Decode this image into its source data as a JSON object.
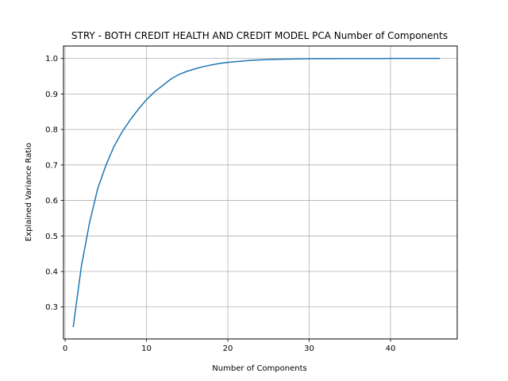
{
  "chart_data": {
    "type": "line",
    "title": "STRY - BOTH CREDIT HEALTH AND CREDIT MODEL PCA Number of Components",
    "xlabel": "Number of Components",
    "ylabel": "Explained Variance Ratio",
    "xlim": [
      -0.2,
      48.2
    ],
    "ylim": [
      0.21,
      1.035
    ],
    "xticks": [
      0,
      10,
      20,
      30,
      40
    ],
    "yticks": [
      0.3,
      0.4,
      0.5,
      0.6,
      0.7,
      0.8,
      0.9,
      1.0
    ],
    "xtick_labels": [
      "0",
      "10",
      "20",
      "30",
      "40"
    ],
    "ytick_labels": [
      "0.3",
      "0.4",
      "0.5",
      "0.6",
      "0.7",
      "0.8",
      "0.9",
      "1.0"
    ],
    "grid": true,
    "series": [
      {
        "color": "#1f77b4",
        "x": [
          1,
          2,
          3,
          4,
          5,
          6,
          7,
          8,
          9,
          10,
          11,
          12,
          13,
          14,
          15,
          16,
          17,
          18,
          19,
          20,
          21,
          22,
          23,
          24,
          25,
          26,
          27,
          28,
          29,
          30,
          31,
          32,
          33,
          34,
          35,
          36,
          37,
          38,
          39,
          40,
          41,
          42,
          43,
          44,
          45,
          46
        ],
        "y": [
          0.245,
          0.415,
          0.537,
          0.633,
          0.698,
          0.752,
          0.793,
          0.827,
          0.857,
          0.884,
          0.906,
          0.924,
          0.942,
          0.955,
          0.964,
          0.971,
          0.977,
          0.982,
          0.986,
          0.989,
          0.991,
          0.993,
          0.995,
          0.996,
          0.997,
          0.9975,
          0.998,
          0.9985,
          0.999,
          0.9992,
          0.9994,
          0.9995,
          0.9996,
          0.9997,
          0.9998,
          0.9998,
          0.9999,
          0.9999,
          0.9999,
          1.0,
          1.0,
          1.0,
          1.0,
          1.0,
          1.0,
          1.0
        ]
      }
    ]
  }
}
